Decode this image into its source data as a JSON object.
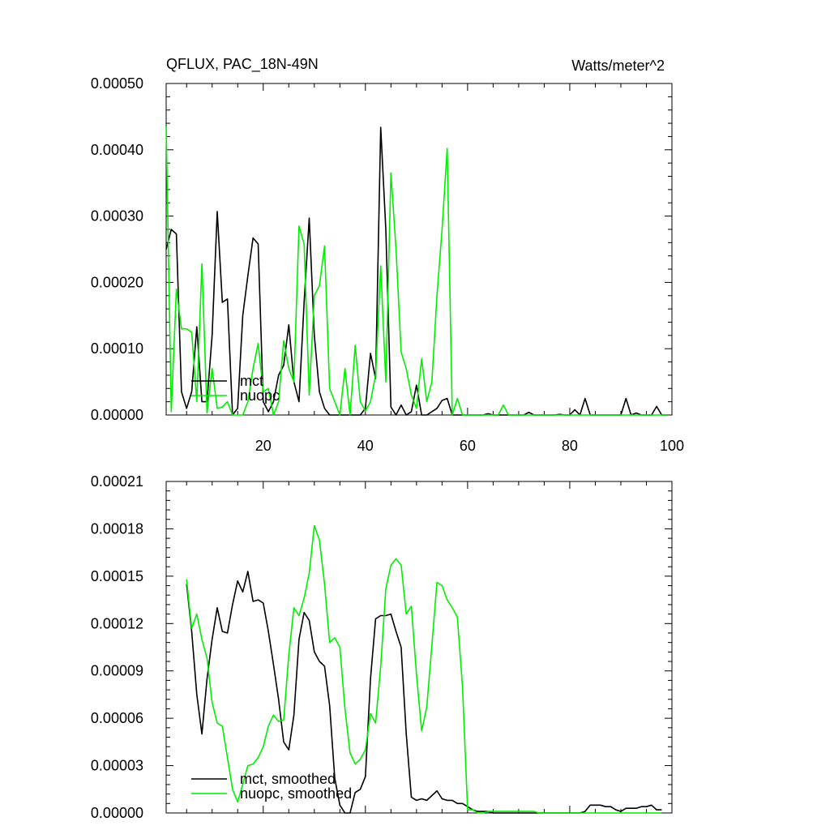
{
  "chart_data": [
    {
      "type": "line",
      "title": "QFLUX, PAC_18N-49N",
      "units": "Watts/meter^2",
      "xlim": [
        1,
        100
      ],
      "ylim": [
        0,
        0.0005
      ],
      "xticks": [
        20,
        40,
        60,
        80,
        100
      ],
      "yticks": [
        0,
        0.0001,
        0.0002,
        0.0003,
        0.0004,
        0.0005
      ],
      "ytick_labels": [
        "0.00000",
        "0.00010",
        "0.00020",
        "0.00030",
        "0.00040",
        "0.00050"
      ],
      "xtick_labels": [
        "20",
        "40",
        "60",
        "80",
        "100"
      ],
      "legend": {
        "position": "bottom-left"
      },
      "series": [
        {
          "name": "mct",
          "color": "#000000",
          "x": [
            1,
            2,
            3,
            4,
            5,
            6,
            7,
            8,
            9,
            10,
            11,
            12,
            13,
            14,
            15,
            16,
            17,
            18,
            19,
            20,
            21,
            22,
            23,
            24,
            25,
            26,
            27,
            28,
            29,
            30,
            31,
            32,
            33,
            34,
            35,
            36,
            37,
            38,
            39,
            40,
            41,
            42,
            43,
            44,
            45,
            46,
            47,
            48,
            49,
            50,
            51,
            52,
            53,
            54,
            55,
            56,
            57,
            58,
            59,
            60,
            61,
            62,
            63,
            64,
            65,
            66,
            67,
            68,
            69,
            70,
            71,
            72,
            73,
            74,
            75,
            76,
            77,
            78,
            79,
            80,
            81,
            82,
            83,
            84,
            85,
            86,
            87,
            88,
            89,
            90,
            91,
            92,
            93,
            94,
            95,
            96,
            97,
            98,
            99
          ],
          "values": [
            0.00025,
            0.00028,
            0.000273,
            3.5e-05,
            1e-05,
            3.5e-05,
            0.000133,
            2e-05,
            2e-05,
            0.00012,
            0.000307,
            0.00017,
            0.000175,
            0,
            1e-05,
            0.00015,
            0.00021,
            0.000267,
            0.000258,
            2e-05,
            5e-06,
            2e-05,
            6e-05,
            7.5e-05,
            0.000136,
            5e-05,
            2e-05,
            0.00017,
            0.000297,
            0.00012,
            3.5e-05,
            1e-05,
            0,
            0,
            0,
            0,
            0,
            0,
            0,
            1e-05,
            9.3e-05,
            5.5e-05,
            0.000434,
            0.00028,
            1.2e-05,
            0,
            1.5e-05,
            0,
            5e-06,
            4.5e-05,
            0,
            0,
            5e-06,
            1e-05,
            2.2e-05,
            2.5e-05,
            0,
            0,
            0,
            0,
            0,
            0,
            0,
            2e-06,
            0,
            0,
            0,
            0,
            0,
            0,
            0,
            4e-06,
            0,
            0,
            0,
            0,
            0,
            1e-06,
            0,
            0,
            8e-06,
            0,
            2.5e-05,
            0,
            0,
            0,
            0,
            0,
            0,
            0,
            2.5e-05,
            0,
            3e-06,
            0,
            0,
            0,
            1.3e-05,
            0,
            0
          ]
        },
        {
          "name": "nuopc",
          "color": "#00ee00",
          "x": [
            1,
            2,
            3,
            4,
            5,
            6,
            7,
            8,
            9,
            10,
            11,
            12,
            13,
            14,
            15,
            16,
            17,
            18,
            19,
            20,
            21,
            22,
            23,
            24,
            25,
            26,
            27,
            28,
            29,
            30,
            31,
            32,
            33,
            34,
            35,
            36,
            37,
            38,
            39,
            40,
            41,
            42,
            43,
            44,
            45,
            46,
            47,
            48,
            49,
            50,
            51,
            52,
            53,
            54,
            55,
            56,
            57,
            58,
            59,
            60,
            61,
            62,
            63,
            64,
            65,
            66,
            67,
            68,
            69,
            70,
            71,
            72,
            73,
            74,
            75,
            76,
            77,
            78,
            79,
            80,
            81,
            82,
            83,
            84,
            85,
            86,
            87,
            88,
            89,
            90,
            91,
            92,
            93,
            94,
            95,
            96,
            97,
            98,
            99
          ],
          "values": [
            0.000435,
            5e-06,
            0.00019,
            0.00013,
            0.00013,
            0.000125,
            2e-05,
            0.000228,
            3e-06,
            7e-05,
            1e-05,
            1.2e-05,
            2e-05,
            0,
            0,
            0,
            2e-05,
            7e-05,
            0.000108,
            3.5e-05,
            4e-05,
            0,
            2e-05,
            0.000112,
            7e-05,
            5e-05,
            0.000285,
            0.000258,
            3e-05,
            0.00018,
            0.000195,
            0.000255,
            4e-05,
            2e-05,
            0,
            7e-05,
            0,
            0.000105,
            2e-05,
            6e-06,
            2e-05,
            6e-05,
            0.000225,
            5e-05,
            0.000365,
            0.00025,
            9.5e-05,
            7e-05,
            3e-05,
            1e-05,
            8.5e-05,
            2e-05,
            5e-05,
            0.00018,
            0.00028,
            0.000402,
            0,
            2.5e-05,
            0,
            0,
            0,
            0,
            0,
            0,
            0,
            0,
            1.5e-05,
            0,
            0,
            0,
            0,
            0,
            0,
            0,
            0,
            0,
            0,
            0,
            0,
            0,
            0,
            0,
            0,
            0,
            0,
            0,
            0,
            0,
            0,
            0,
            0,
            0,
            0,
            0,
            0,
            0,
            0,
            0,
            0
          ]
        }
      ]
    },
    {
      "type": "line",
      "xlim": [
        1,
        100
      ],
      "ylim": [
        0,
        0.00021
      ],
      "xticks": [
        20,
        40,
        60,
        80,
        100
      ],
      "yticks": [
        0,
        3e-05,
        6e-05,
        9e-05,
        0.00012,
        0.00015,
        0.00018,
        0.00021
      ],
      "ytick_labels": [
        "0.00000",
        "0.00003",
        "0.00006",
        "0.00009",
        "0.00012",
        "0.00015",
        "0.00018",
        "0.00021"
      ],
      "legend": {
        "position": "bottom-left"
      },
      "series": [
        {
          "name": "mct, smoothed",
          "color": "#000000",
          "x": [
            5,
            6,
            7,
            8,
            9,
            10,
            11,
            12,
            13,
            14,
            15,
            16,
            17,
            18,
            19,
            20,
            21,
            22,
            23,
            24,
            25,
            26,
            27,
            28,
            29,
            30,
            31,
            32,
            33,
            34,
            35,
            36,
            37,
            38,
            39,
            40,
            41,
            42,
            43,
            44,
            45,
            46,
            47,
            48,
            49,
            50,
            51,
            52,
            53,
            54,
            55,
            56,
            57,
            58,
            59,
            60,
            61,
            62,
            63,
            64,
            65,
            66,
            67,
            68,
            69,
            70,
            71,
            72,
            73,
            74,
            75,
            76,
            77,
            78,
            79,
            80,
            81,
            82,
            83,
            84,
            85,
            86,
            87,
            88,
            89,
            90,
            91,
            92,
            93,
            94,
            95,
            96,
            97,
            98
          ],
          "values": [
            0.000145,
            0.000115,
            7.5e-05,
            5e-05,
            8.5e-05,
            0.00011,
            0.00013,
            0.000115,
            0.000114,
            0.000132,
            0.000147,
            0.00014,
            0.000153,
            0.000134,
            0.000135,
            0.000133,
            0.000115,
            9.4e-05,
            7.2e-05,
            4.5e-05,
            4e-05,
            6.2e-05,
            0.00011,
            0.000127,
            0.000122,
            0.000102,
            9.6e-05,
            9.3e-05,
            6.8e-05,
            2.2e-05,
            5e-06,
            0,
            0,
            1.3e-05,
            1.5e-05,
            2.3e-05,
            8.5e-05,
            0.000123,
            0.000125,
            0.000125,
            0.000126,
            0.000115,
            0.000105,
            5e-05,
            1e-05,
            8e-06,
            9e-06,
            8e-06,
            1.1e-05,
            1.4e-05,
            9e-06,
            8e-06,
            8e-06,
            6e-06,
            6e-06,
            4e-06,
            2e-06,
            1e-06,
            1e-06,
            1e-06,
            0,
            0,
            0,
            0,
            0,
            0,
            0,
            0,
            0,
            0,
            0,
            0,
            0,
            0,
            0,
            0,
            0,
            0,
            1e-06,
            5e-06,
            5e-06,
            5e-06,
            4e-06,
            4e-06,
            2e-06,
            1e-06,
            3e-06,
            3e-06,
            3e-06,
            4e-06,
            4e-06,
            5e-06,
            2e-06,
            2e-06
          ]
        },
        {
          "name": "nuopc, smoothed",
          "color": "#00ee00",
          "x": [
            5,
            6,
            7,
            8,
            9,
            10,
            11,
            12,
            13,
            14,
            15,
            16,
            17,
            18,
            19,
            20,
            21,
            22,
            23,
            24,
            25,
            26,
            27,
            28,
            29,
            30,
            31,
            32,
            33,
            34,
            35,
            36,
            37,
            38,
            39,
            40,
            41,
            42,
            43,
            44,
            45,
            46,
            47,
            48,
            49,
            50,
            51,
            52,
            53,
            54,
            55,
            56,
            57,
            58,
            59,
            60,
            61,
            62,
            63,
            64,
            65,
            66,
            67,
            68,
            69,
            70,
            71,
            72,
            73,
            74,
            75,
            76,
            77,
            78,
            79,
            80,
            81,
            82,
            83,
            84,
            85,
            86,
            87,
            88,
            89,
            90,
            91,
            92,
            93,
            94,
            95,
            96,
            97,
            98
          ],
          "values": [
            0.000148,
            0.000117,
            0.000126,
            0.00011,
            9.8e-05,
            7e-05,
            5.7e-05,
            5.5e-05,
            3.5e-05,
            1.5e-05,
            7e-06,
            1.8e-05,
            3e-05,
            3.1e-05,
            3.5e-05,
            4.2e-05,
            5.5e-05,
            6.2e-05,
            5.8e-05,
            5.9e-05,
            0.0001,
            0.00013,
            0.000125,
            0.000136,
            0.000152,
            0.000182,
            0.000173,
            0.000145,
            0.000108,
            0.000111,
            0.000105,
            6.6e-05,
            3.8e-05,
            3.1e-05,
            3.4e-05,
            4e-05,
            6.3e-05,
            5.7e-05,
            9.3e-05,
            0.000142,
            0.000157,
            0.000161,
            0.000157,
            0.000126,
            0.000131,
            8.8e-05,
            5.2e-05,
            6.7e-05,
            0.000106,
            0.000146,
            0.000144,
            0.000135,
            0.00013,
            0.000124,
            8e-05,
            2e-06,
            2e-06,
            0,
            0,
            1e-06,
            1e-06,
            1e-06,
            1e-06,
            1e-06,
            1e-06,
            1e-06,
            1e-06,
            1e-06,
            1e-06,
            0,
            0,
            0,
            0,
            0,
            0,
            0,
            0,
            0,
            0,
            0,
            0,
            0,
            0,
            0,
            0,
            0,
            0,
            0,
            0,
            0,
            0,
            0,
            0,
            0
          ]
        }
      ]
    }
  ]
}
